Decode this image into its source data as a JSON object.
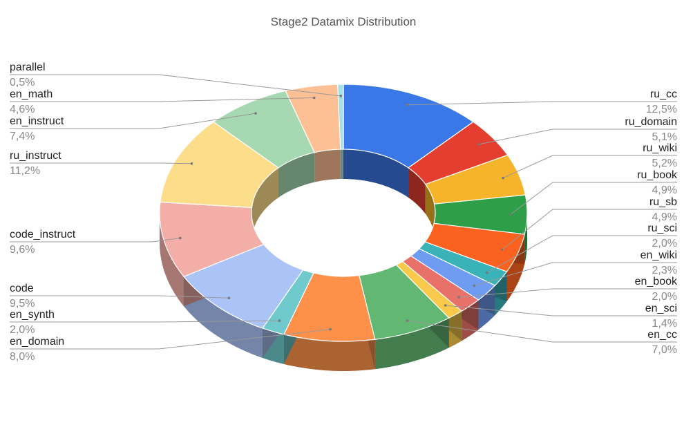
{
  "chart_data": {
    "type": "pie",
    "title": "Stage2 Datamix Distribution",
    "slices": [
      {
        "label": "ru_cc",
        "value": 12.5,
        "value_label": "12,5%",
        "color": "#3b78e7",
        "side": "right"
      },
      {
        "label": "ru_domain",
        "value": 5.1,
        "value_label": "5,1%",
        "color": "#e43e30",
        "side": "right"
      },
      {
        "label": "ru_wiki",
        "value": 5.2,
        "value_label": "5,2%",
        "color": "#f6b42a",
        "side": "right"
      },
      {
        "label": "ru_book",
        "value": 4.9,
        "value_label": "4,9%",
        "color": "#2e9e48",
        "side": "right"
      },
      {
        "label": "ru_sb",
        "value": 4.9,
        "value_label": "4,9%",
        "color": "#fb6220",
        "side": "right"
      },
      {
        "label": "ru_sci",
        "value": 2.0,
        "value_label": "2,0%",
        "color": "#3ab3b8",
        "side": "right"
      },
      {
        "label": "en_wiki",
        "value": 2.3,
        "value_label": "2,3%",
        "color": "#6d9cf2",
        "side": "right"
      },
      {
        "label": "en_book",
        "value": 2.0,
        "value_label": "2,0%",
        "color": "#e8716a",
        "side": "right"
      },
      {
        "label": "en_sci",
        "value": 1.4,
        "value_label": "1,4%",
        "color": "#f8c94a",
        "side": "right"
      },
      {
        "label": "en_cc",
        "value": 7.0,
        "value_label": "7,0%",
        "color": "#62b873",
        "side": "right"
      },
      {
        "label": "en_domain",
        "value": 8.0,
        "value_label": "8,0%",
        "color": "#fd914a",
        "side": "left"
      },
      {
        "label": "en_synth",
        "value": 2.0,
        "value_label": "2,0%",
        "color": "#70c9cc",
        "side": "left"
      },
      {
        "label": "code",
        "value": 9.5,
        "value_label": "9,5%",
        "color": "#aac4f8",
        "side": "left"
      },
      {
        "label": "code_instruct",
        "value": 9.6,
        "value_label": "9,6%",
        "color": "#f3aea8",
        "side": "left"
      },
      {
        "label": "ru_instruct",
        "value": 11.2,
        "value_label": "11,2%",
        "color": "#fbdd8a",
        "side": "left"
      },
      {
        "label": "en_instruct",
        "value": 7.4,
        "value_label": "7,4%",
        "color": "#a6d8b1",
        "side": "left"
      },
      {
        "label": "en_math",
        "value": 4.6,
        "value_label": "4,6%",
        "color": "#fdbf94",
        "side": "left"
      },
      {
        "label": "parallel",
        "value": 0.5,
        "value_label": "0,5%",
        "color": "#a4e0e4",
        "side": "left"
      }
    ],
    "style": "3d-donut",
    "legend": "none",
    "labels_position": "outside-with-leaders"
  }
}
